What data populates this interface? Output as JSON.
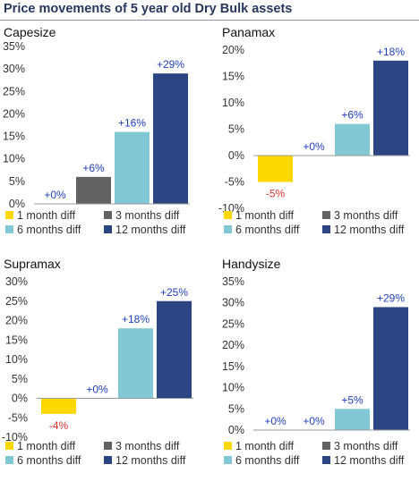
{
  "title": "Price movements of 5 year old Dry Bulk assets",
  "colors": {
    "title": "#27385e",
    "positive_label": "#1f3fbf",
    "negative_label": "#e0302f",
    "axis_text": "#333333"
  },
  "chart_data": [
    {
      "type": "bar",
      "title": "Capesize",
      "categories": [
        "1 month diff",
        "3 months diff",
        "6 months diff",
        "12 months diff"
      ],
      "values": [
        0,
        6,
        16,
        29
      ],
      "data_labels": [
        "+0%",
        "+6%",
        "+16%",
        "+29%"
      ],
      "series_colors": [
        "#ffd800",
        "#626262",
        "#82c8d4",
        "#2b4582"
      ],
      "ylim": [
        0,
        35
      ],
      "yticks": [
        0,
        5,
        10,
        15,
        20,
        25,
        30,
        35
      ],
      "ytick_labels": [
        "0%",
        "5%",
        "10%",
        "15%",
        "20%",
        "25%",
        "30%",
        "35%"
      ],
      "grid": false,
      "legend": "bottom"
    },
    {
      "type": "bar",
      "title": "Panamax",
      "categories": [
        "1 month diff",
        "3 months diff",
        "6 months diff",
        "12 months diff"
      ],
      "values": [
        -5,
        0,
        6,
        18
      ],
      "data_labels": [
        "-5%",
        "+0%",
        "+6%",
        "+18%"
      ],
      "series_colors": [
        "#ffd800",
        "#626262",
        "#82c8d4",
        "#2b4582"
      ],
      "ylim": [
        -10,
        20
      ],
      "yticks": [
        -10,
        -5,
        0,
        5,
        10,
        15,
        20
      ],
      "ytick_labels": [
        "-10%",
        "-5%",
        "0%",
        "5%",
        "10%",
        "15%",
        "20%"
      ],
      "grid": false,
      "legend": "bottom"
    },
    {
      "type": "bar",
      "title": "Supramax",
      "categories": [
        "1 month diff",
        "3 months diff",
        "6 months diff",
        "12 months diff"
      ],
      "values": [
        -4,
        0,
        18,
        25
      ],
      "data_labels": [
        "-4%",
        "+0%",
        "+18%",
        "+25%"
      ],
      "series_colors": [
        "#ffd800",
        "#626262",
        "#82c8d4",
        "#2b4582"
      ],
      "ylim": [
        -10,
        30
      ],
      "yticks": [
        -10,
        -5,
        0,
        5,
        10,
        15,
        20,
        25,
        30
      ],
      "ytick_labels": [
        "-10%",
        "-5%",
        "0%",
        "5%",
        "10%",
        "15%",
        "20%",
        "25%",
        "30%"
      ],
      "grid": false,
      "legend": "bottom"
    },
    {
      "type": "bar",
      "title": "Handysize",
      "categories": [
        "1 month diff",
        "3 months diff",
        "6 months diff",
        "12 months diff"
      ],
      "values": [
        0,
        0,
        5,
        29
      ],
      "data_labels": [
        "+0%",
        "+0%",
        "+5%",
        "+29%"
      ],
      "series_colors": [
        "#ffd800",
        "#626262",
        "#82c8d4",
        "#2b4582"
      ],
      "ylim": [
        0,
        35
      ],
      "yticks": [
        0,
        5,
        10,
        15,
        20,
        25,
        30,
        35
      ],
      "ytick_labels": [
        "0%",
        "5%",
        "10%",
        "15%",
        "20%",
        "25%",
        "30%",
        "35%"
      ],
      "grid": false,
      "legend": "bottom"
    }
  ]
}
